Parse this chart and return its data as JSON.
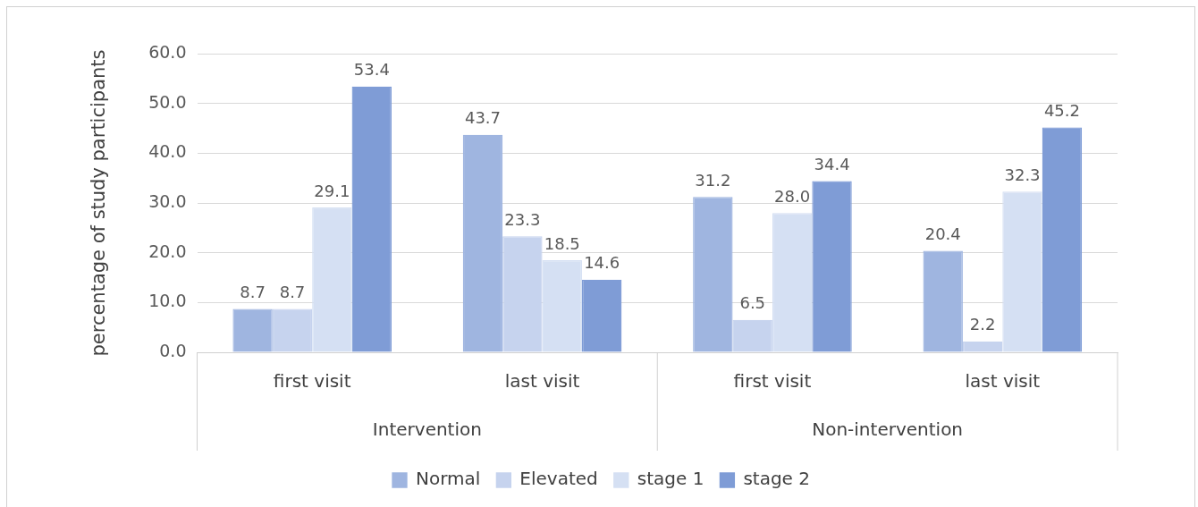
{
  "chart_data": {
    "type": "bar",
    "ylabel": "percentage of study participants",
    "categories": [
      "first visit",
      "last visit",
      "first visit",
      "last visit"
    ],
    "annotations": [
      "Intervention",
      "Non-intervention"
    ],
    "series": [
      {
        "name": "Normal",
        "color": "#9fb5e0",
        "values": [
          8.7,
          43.7,
          31.2,
          20.4
        ],
        "value_labels": [
          "8.7",
          "43.7",
          "31.2",
          "20.4"
        ]
      },
      {
        "name": "Elevated",
        "color": "#c6d3ee",
        "values": [
          8.7,
          23.3,
          6.5,
          2.2
        ],
        "value_labels": [
          "8.7",
          "23.3",
          "6.5",
          "2.2"
        ]
      },
      {
        "name": "stage 1",
        "color": "#d5e0f3",
        "values": [
          29.1,
          18.5,
          28.0,
          32.3
        ],
        "value_labels": [
          "29.1",
          "18.5",
          "28.0",
          "32.3"
        ]
      },
      {
        "name": "stage 2",
        "color": "#7f9cd6",
        "values": [
          53.4,
          14.6,
          34.4,
          45.2
        ],
        "value_labels": [
          "53.4",
          "14.6",
          "34.4",
          "45.2"
        ]
      }
    ],
    "ylim": [
      0,
      60
    ],
    "yticks": [
      {
        "value": 0,
        "label": "0.0"
      },
      {
        "value": 10,
        "label": "10.0"
      },
      {
        "value": 20,
        "label": "20.0"
      },
      {
        "value": 30,
        "label": "30.0"
      },
      {
        "value": 40,
        "label": "40.0"
      },
      {
        "value": 50,
        "label": "50.0"
      },
      {
        "value": 60,
        "label": "60.0"
      }
    ],
    "grid": "y",
    "legend": "bottom"
  }
}
